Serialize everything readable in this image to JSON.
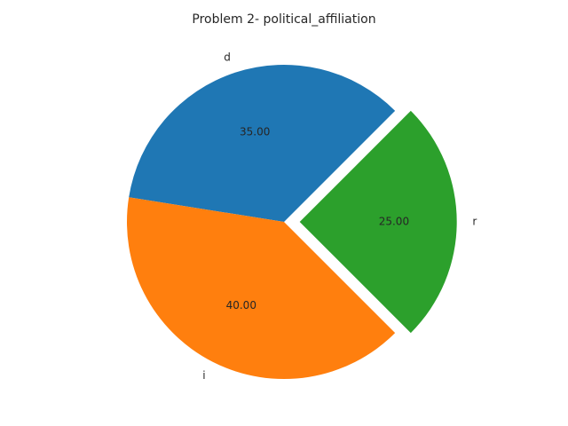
{
  "chart_data": {
    "type": "pie",
    "title": "Problem 2- political_affiliation",
    "categories": [
      "d",
      "i",
      "r"
    ],
    "values": [
      35.0,
      40.0,
      25.0
    ],
    "value_labels": [
      "35.00",
      "40.00",
      "25.00"
    ],
    "colors": [
      "#1f77b4",
      "#ff7f0e",
      "#2ca02c"
    ],
    "explode": [
      0.0,
      0.0,
      0.1
    ],
    "startangle_deg": 45,
    "counterclockwise": true,
    "legend": "none",
    "grid": false
  }
}
